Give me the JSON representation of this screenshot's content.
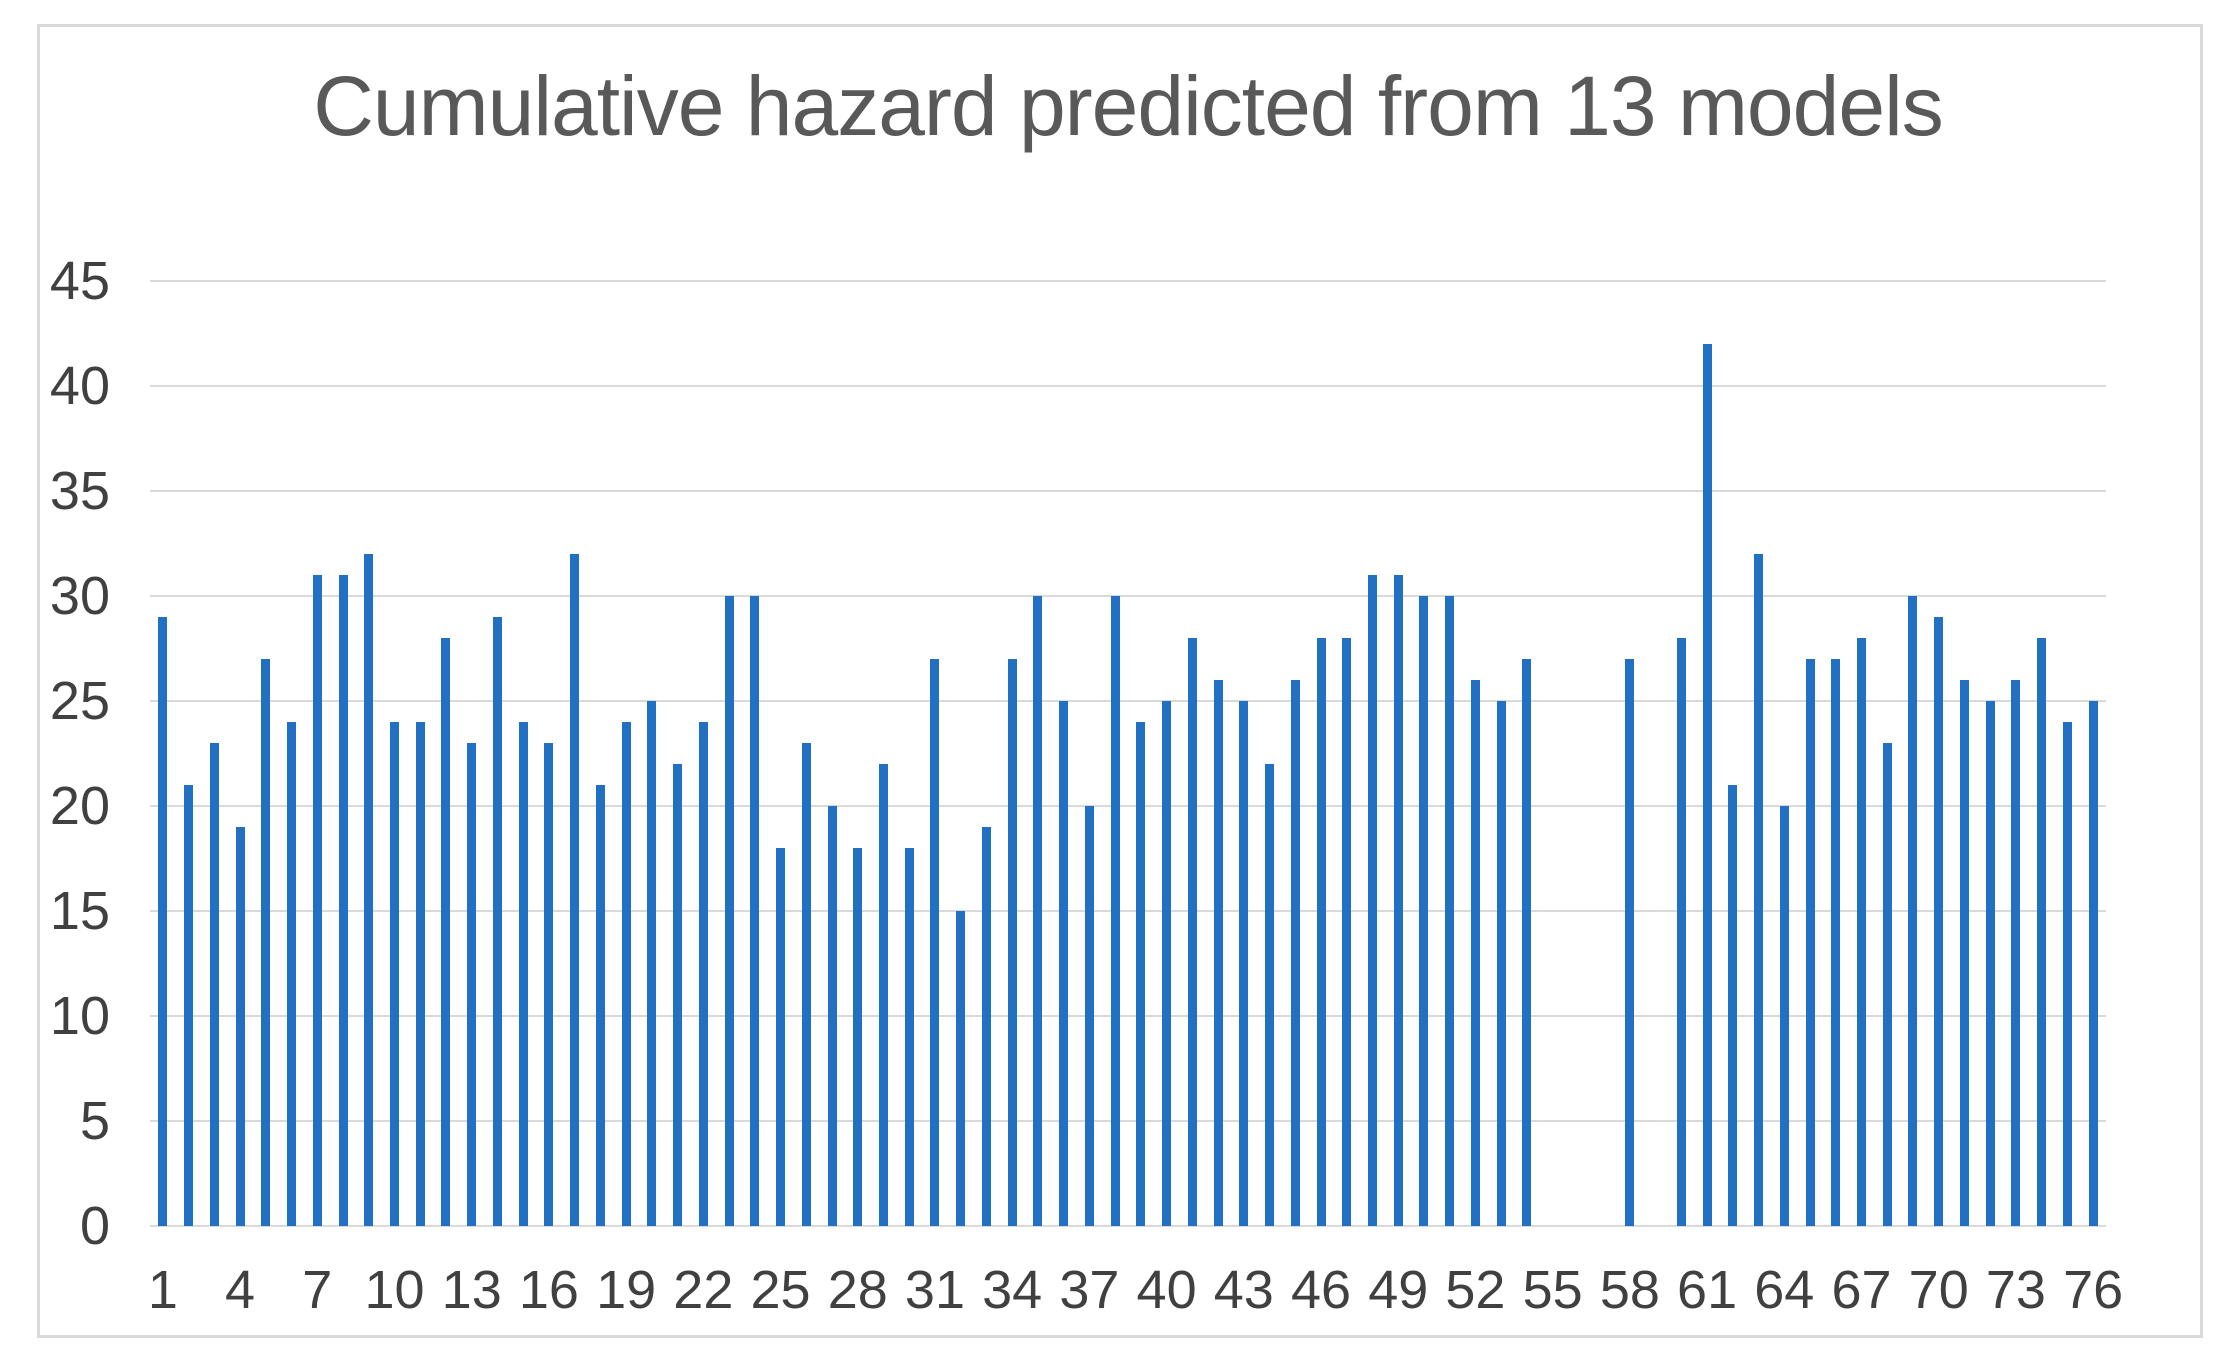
{
  "chart_data": {
    "type": "bar",
    "title": "Cumulative hazard predicted from 13 models",
    "xlabel": "",
    "ylabel": "",
    "ylim": [
      0,
      45
    ],
    "y_ticks": [
      0,
      5,
      10,
      15,
      20,
      25,
      30,
      35,
      40,
      45
    ],
    "x_tick_labels": [
      1,
      4,
      7,
      10,
      13,
      16,
      19,
      22,
      25,
      28,
      31,
      34,
      37,
      40,
      43,
      46,
      49,
      52,
      55,
      58,
      61,
      64,
      67,
      70,
      73,
      76
    ],
    "categories": [
      1,
      2,
      3,
      4,
      5,
      6,
      7,
      8,
      9,
      10,
      11,
      12,
      13,
      14,
      15,
      16,
      17,
      18,
      19,
      20,
      21,
      22,
      23,
      24,
      25,
      26,
      27,
      28,
      29,
      30,
      31,
      32,
      33,
      34,
      35,
      36,
      37,
      38,
      39,
      40,
      41,
      42,
      43,
      44,
      45,
      46,
      47,
      48,
      49,
      50,
      51,
      52,
      53,
      54,
      55,
      56,
      57,
      58,
      59,
      60,
      61,
      62,
      63,
      64,
      65,
      66,
      67,
      68,
      69,
      70,
      71,
      72,
      73,
      74,
      75,
      76
    ],
    "values": [
      29,
      21,
      23,
      19,
      27,
      24,
      31,
      31,
      32,
      24,
      24,
      28,
      23,
      29,
      24,
      23,
      32,
      21,
      24,
      25,
      22,
      24,
      30,
      30,
      18,
      23,
      20,
      18,
      22,
      18,
      27,
      15,
      19,
      27,
      30,
      25,
      20,
      30,
      24,
      25,
      28,
      26,
      25,
      22,
      26,
      28,
      28,
      31,
      31,
      30,
      30,
      26,
      25,
      27,
      null,
      null,
      null,
      27,
      null,
      28,
      42,
      21,
      32,
      20,
      27,
      27,
      28,
      23,
      30,
      29,
      26,
      25,
      26,
      28,
      24,
      25
    ],
    "missing_categories": [
      55,
      56,
      57,
      59
    ],
    "grid": "horizontal",
    "legend_position": "none",
    "bar_color": "#2170c4",
    "gridline_color": "#d9d9d9",
    "frame_border_color": "#d9d9d9",
    "title_color": "#595959",
    "axis_label_color": "#404040",
    "background_color": "#ffffff"
  }
}
